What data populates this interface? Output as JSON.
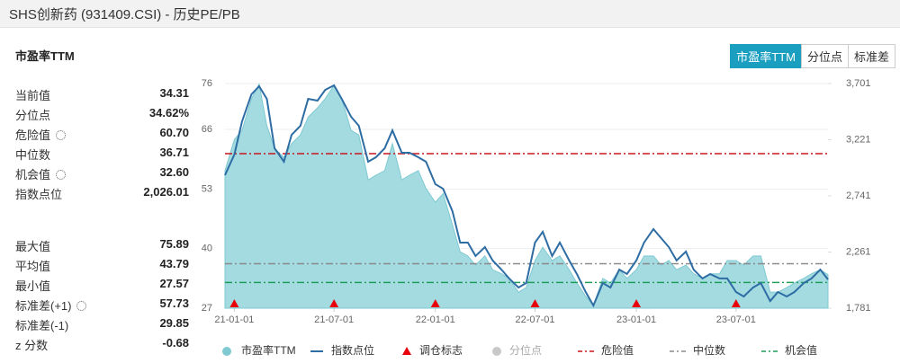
{
  "header": {
    "title": "SHS创新药 (931409.CSI) - 历史PE/PB"
  },
  "panel": {
    "title": "市盈率TTM",
    "tabs": [
      "市盈率TTM",
      "分位点",
      "标准差"
    ],
    "active_tab": 0
  },
  "stats": {
    "groups": [
      [
        {
          "label": "当前值",
          "value": "34.31"
        },
        {
          "label": "分位点",
          "value": "34.62%"
        },
        {
          "label": "危险值",
          "value": "60.70",
          "has_settings": true
        },
        {
          "label": "中位数",
          "value": "36.71"
        },
        {
          "label": "机会值",
          "value": "32.60",
          "has_settings": true
        },
        {
          "label": "指数点位",
          "value": "2,026.01"
        }
      ],
      [
        {
          "label": "最大值",
          "value": "75.89"
        },
        {
          "label": "平均值",
          "value": "43.79"
        },
        {
          "label": "最小值",
          "value": "27.57"
        },
        {
          "label": "标准差(+1)",
          "value": "57.73",
          "has_settings": true
        },
        {
          "label": "标准差(-1)",
          "value": "29.85"
        },
        {
          "label": "z 分数",
          "value": "-0.68"
        }
      ]
    ]
  },
  "chart_data": {
    "type": "combo",
    "x": [
      "20-12-15",
      "21-01-01",
      "21-01-15",
      "21-02-01",
      "21-02-15",
      "21-03-01",
      "21-03-15",
      "21-04-01",
      "21-04-15",
      "21-05-01",
      "21-05-15",
      "21-06-01",
      "21-06-15",
      "21-07-01",
      "21-07-15",
      "21-08-01",
      "21-08-15",
      "21-09-01",
      "21-09-15",
      "21-10-01",
      "21-10-15",
      "21-11-01",
      "21-11-15",
      "21-12-01",
      "21-12-15",
      "22-01-01",
      "22-01-15",
      "22-02-01",
      "22-02-15",
      "22-03-01",
      "22-03-15",
      "22-04-01",
      "22-04-15",
      "22-05-01",
      "22-05-15",
      "22-06-01",
      "22-06-15",
      "22-07-01",
      "22-07-15",
      "22-08-01",
      "22-08-15",
      "22-09-01",
      "22-09-15",
      "22-10-01",
      "22-10-15",
      "22-11-01",
      "22-11-15",
      "22-12-01",
      "22-12-15",
      "23-01-01",
      "23-01-15",
      "23-02-01",
      "23-02-15",
      "23-03-01",
      "23-03-15",
      "23-04-01",
      "23-04-15",
      "23-05-01",
      "23-05-15",
      "23-06-01",
      "23-06-15",
      "23-07-01",
      "23-07-15",
      "23-08-01",
      "23-08-15",
      "23-09-01",
      "23-09-15",
      "23-10-01",
      "23-10-15",
      "23-11-01",
      "23-11-15",
      "23-12-01",
      "23-12-15"
    ],
    "series": [
      {
        "name": "市盈率TTM",
        "kind": "area",
        "color": "#a3dbe1",
        "edge": "#7fc9d2",
        "values": [
          57,
          63.8,
          65.8,
          72.7,
          75.89,
          66.8,
          61.9,
          59.9,
          62.9,
          64.8,
          68.7,
          70.7,
          72.7,
          75.6,
          72.7,
          65.8,
          64.8,
          55,
          56,
          57,
          62.9,
          55,
          56,
          57,
          53.1,
          50.1,
          52,
          45.2,
          39.3,
          38.4,
          36.4,
          38.4,
          35.4,
          34.5,
          33.5,
          30.5,
          31.5,
          37.4,
          40.3,
          37.4,
          38.4,
          35.4,
          32.5,
          29.6,
          27.57,
          33.5,
          32.5,
          35.4,
          33.5,
          35.4,
          38.4,
          38.4,
          36.4,
          37.4,
          35.4,
          36.4,
          34.5,
          33.5,
          34.5,
          34.5,
          37.4,
          37.4,
          36.4,
          38.4,
          38.4,
          30.5,
          30.5,
          31.5,
          32.5,
          33.5,
          34.5,
          35.4,
          34.31
        ]
      },
      {
        "name": "指数点位",
        "kind": "line",
        "axis": "y2",
        "color": "#2e6da4",
        "values": [
          2918,
          3094,
          3378,
          3609,
          3678,
          3570,
          3148,
          3033,
          3263,
          3340,
          3570,
          3555,
          3647,
          3686,
          3570,
          3417,
          3340,
          3033,
          3071,
          3148,
          3301,
          3110,
          3110,
          3071,
          3033,
          2841,
          2802,
          2610,
          2342,
          2342,
          2227,
          2303,
          2189,
          2111,
          2035,
          1958,
          1996,
          2342,
          2434,
          2227,
          2342,
          2189,
          2073,
          1919,
          1804,
          1996,
          1958,
          2111,
          2073,
          2189,
          2342,
          2457,
          2380,
          2303,
          2189,
          2265,
          2111,
          2035,
          2073,
          2035,
          2035,
          1919,
          1881,
          1958,
          1996,
          1842,
          1919,
          1881,
          1919,
          1996,
          2035,
          2111,
          2026.01
        ]
      }
    ],
    "markers": {
      "name": "调仓标志",
      "color": "#e8000b",
      "x": [
        "21-01-01",
        "21-07-01",
        "22-01-01",
        "22-07-01",
        "23-01-01",
        "23-07-01"
      ]
    },
    "percentile_series": {
      "name": "分位点",
      "color": "#c8c8c8",
      "visible": false
    },
    "reference_lines": [
      {
        "name": "危险值",
        "value": 60.7,
        "color": "#c8161d"
      },
      {
        "name": "中位数",
        "value": 36.71,
        "color": "#8a8a8a"
      },
      {
        "name": "机会值",
        "value": 32.6,
        "color": "#1f9e5a"
      }
    ],
    "xlim": [
      "20-12-15",
      "23-12-15"
    ],
    "xticks": [
      "21-01-01",
      "21-07-01",
      "22-01-01",
      "22-07-01",
      "23-01-01",
      "23-07-01"
    ],
    "ylim": [
      27,
      76
    ],
    "yticks": [
      27,
      40,
      53,
      66,
      76
    ],
    "y2lim": [
      1781,
      3701
    ],
    "y2ticks": [
      {
        "value": 1781,
        "label": "1,781"
      },
      {
        "value": 2261,
        "label": "2,261"
      },
      {
        "value": 2741,
        "label": "2,741"
      },
      {
        "value": 3221,
        "label": "3,221"
      },
      {
        "value": 3701,
        "label": "3,701"
      }
    ],
    "grid": true
  }
}
